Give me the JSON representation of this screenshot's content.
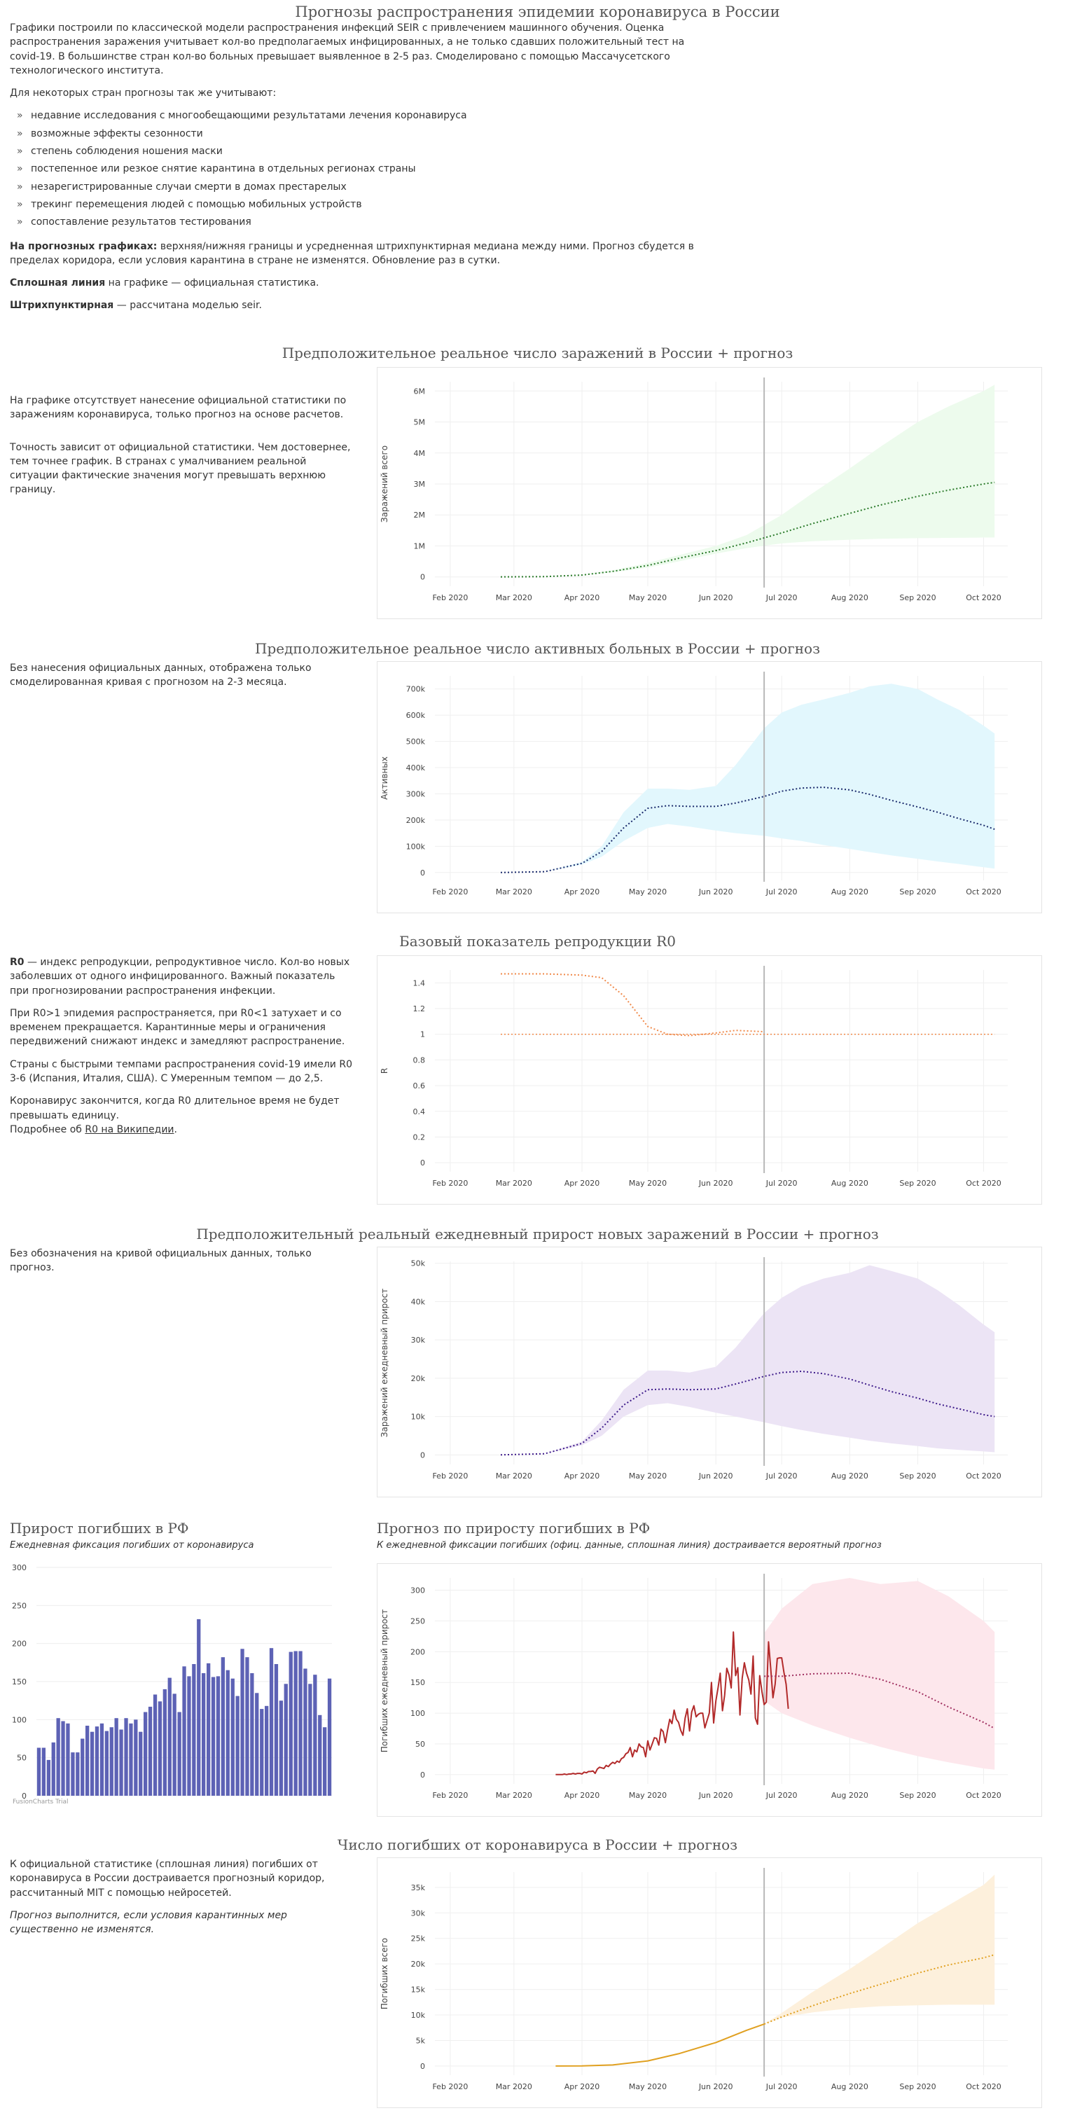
{
  "page": {
    "title": "Прогнозы распространения эпидемии коронавируса в России",
    "intro_p1": "Графики построили по классической модели распространения инфекций SEIR с привлечением машинного обучения. Оценка распространения заражения учитывает кол-во предполагаемых инфицированных, а не только сдавших положительный тест на covid-19. В большинстве стран кол-во больных превышает выявленное в 2-5 раз. Смоделировано с помощью Массачусетского технологического института.",
    "intro_p2": "Для некоторых стран прогнозы так же учитывают:",
    "factors": [
      "недавние исследования с многообещающими результатами лечения коронавируса",
      "возможные эффекты сезонности",
      "степень соблюдения ношения маски",
      "постепенное или резкое снятие карантина в отдельных регионах страны",
      "незарегистрированные случаи смерти в домах престарелых",
      "трекинг перемещения людей с помощью мобильных устройств",
      "сопоставление результатов тестирования"
    ],
    "note_forecast_bold": "На прогнозных графиках:",
    "note_forecast_text": " верхняя/нижняя границы и усредненная штрихпунктирная медиана между ними. Прогноз сбудется в пределах коридора, если условия карантина в стране не изменятся. Обновление раз в сутки.",
    "note_solid_bold": "Сплошная линия",
    "note_solid_text": " на графике — официальная статистика.",
    "note_dashed_bold": "Штрихпунктирная",
    "note_dashed_text": " — рассчитана моделью seir."
  },
  "sections": {
    "infected": {
      "title": "Предположительное реальное число заражений в России + прогноз",
      "text1": "На графике отсутствует нанесение официальной статистики по заражениям коронавируса, только прогноз на основе расчетов.",
      "text2": "Точность зависит от официальной статистики. Чем достовернее, тем точнее график. В странах с умалчиванием реальной ситуации фактические значения могут превышать верхнюю границу."
    },
    "active": {
      "title": "Предположительное реальное число активных больных в России + прогноз",
      "text1": "Без нанесения официальных данных, отображена только смоделированная кривая с прогнозом на 2-3 месяца."
    },
    "r0": {
      "title": "Базовый показатель репродукции R0",
      "p1_bold": "R0",
      "p1_text": " — индекс репродукции, репродуктивное число. Кол-во новых заболевших от одного инфицированного. Важный показатель при прогнозировании распространения инфекции.",
      "p2": "При R0>1 эпидемия распространяется, при R0<1 затухает и со временем прекращается. Карантинные меры и ограничения передвижений снижают индекс и замедляют распространение.",
      "p3": "Страны с быстрыми темпами распространения covid-19 имели R0 3-6 (Испания, Италия, США). С Умеренным темпом — до 2,5.",
      "p4": "Коронавирус закончится, когда R0 длительное время не будет превышать единицу.",
      "p5_prefix": "Подробнее об ",
      "p5_link": "R0 на Википедии",
      "p5_suffix": "."
    },
    "daily": {
      "title": "Предположительный реальный ежедневный прирост новых заражений в России + прогноз",
      "text1": "Без обозначения на кривой официальных данных, только прогноз."
    },
    "deaths_growth": {
      "title": "Прирост погибших в РФ",
      "subtitle": "Ежедневная фиксация погибших от коронавируса",
      "credit": "FusionCharts Trial"
    },
    "deaths_forecast": {
      "title": "Прогноз по приросту погибших в РФ",
      "subtitle": "К ежедневной фиксации погибших (офиц. данные, сплошная линия) достраивается вероятный прогноз"
    },
    "deaths_total": {
      "title": "Число погибших от коронавируса в России + прогноз",
      "text1": "К официальной статистике (сплошная линия) погибших от коронавируса в России достраивается прогнозный коридор, рассчитанный MIT с помощью нейросетей.",
      "text2": "Прогноз выполнится, если условия карантинных мер существенно не изменятся."
    }
  },
  "chart_data": [
    {
      "id": "infected",
      "type": "area",
      "x_ticks": [
        "Feb 2020",
        "Mar 2020",
        "Apr 2020",
        "May 2020",
        "Jun 2020",
        "Jul 2020",
        "Aug 2020",
        "Sep 2020",
        "Oct 2020"
      ],
      "ylabel": "Заражений всего",
      "y_ticks": [
        0,
        1000000,
        2000000,
        3000000,
        4000000,
        5000000,
        6000000
      ],
      "y_tick_labels": [
        "0",
        "1M",
        "2M",
        "3M",
        "4M",
        "5M",
        "6M"
      ],
      "ylim": [
        -300000,
        6300000
      ],
      "grid": true,
      "band_color": "#edfbed",
      "line_color": "#2a7a2a",
      "today": "2020-06-23",
      "series": [
        {
          "x": [
            "2020-02-24",
            "2020-03-15",
            "2020-04-01",
            "2020-04-15",
            "2020-05-01",
            "2020-05-15",
            "2020-06-01",
            "2020-06-15",
            "2020-07-01",
            "2020-07-15",
            "2020-08-01",
            "2020-08-15",
            "2020-09-01",
            "2020-09-15",
            "2020-10-01",
            "2020-10-06"
          ],
          "lower": [
            0,
            10000,
            50000,
            150000,
            300000,
            500000,
            750000,
            930000,
            1080000,
            1150000,
            1200000,
            1230000,
            1250000,
            1260000,
            1270000,
            1270000
          ],
          "median": [
            0,
            10000,
            60000,
            180000,
            370000,
            600000,
            850000,
            1100000,
            1420000,
            1720000,
            2050000,
            2320000,
            2600000,
            2800000,
            3000000,
            3050000
          ],
          "upper": [
            0,
            10000,
            70000,
            210000,
            450000,
            700000,
            1000000,
            1350000,
            2000000,
            2700000,
            3500000,
            4200000,
            5000000,
            5500000,
            6000000,
            6200000
          ]
        }
      ]
    },
    {
      "id": "active",
      "type": "area",
      "x_ticks": [
        "Feb 2020",
        "Mar 2020",
        "Apr 2020",
        "May 2020",
        "Jun 2020",
        "Jul 2020",
        "Aug 2020",
        "Sep 2020",
        "Oct 2020"
      ],
      "ylabel": "Активных",
      "y_ticks": [
        0,
        100000,
        200000,
        300000,
        400000,
        500000,
        600000,
        700000
      ],
      "y_tick_labels": [
        "0",
        "100k",
        "200k",
        "300k",
        "400k",
        "500k",
        "600k",
        "700k"
      ],
      "ylim": [
        -30000,
        750000
      ],
      "grid": true,
      "band_color": "#e2f7fd",
      "line_color": "#1a2a6c",
      "today": "2020-06-23",
      "series": [
        {
          "x": [
            "2020-02-24",
            "2020-03-15",
            "2020-04-01",
            "2020-04-10",
            "2020-04-20",
            "2020-05-01",
            "2020-05-10",
            "2020-05-20",
            "2020-06-01",
            "2020-06-10",
            "2020-06-23",
            "2020-07-01",
            "2020-07-10",
            "2020-07-20",
            "2020-08-01",
            "2020-08-10",
            "2020-08-20",
            "2020-09-01",
            "2020-09-10",
            "2020-09-20",
            "2020-10-01",
            "2020-10-06"
          ],
          "lower": [
            0,
            3000,
            30000,
            60000,
            120000,
            170000,
            185000,
            175000,
            160000,
            150000,
            140000,
            130000,
            120000,
            105000,
            90000,
            78000,
            65000,
            52000,
            42000,
            32000,
            20000,
            15000
          ],
          "median": [
            0,
            3000,
            35000,
            80000,
            170000,
            245000,
            255000,
            252000,
            252000,
            265000,
            290000,
            310000,
            322000,
            325000,
            315000,
            298000,
            275000,
            250000,
            230000,
            205000,
            180000,
            165000
          ],
          "upper": [
            0,
            3000,
            40000,
            100000,
            230000,
            320000,
            320000,
            315000,
            330000,
            410000,
            550000,
            610000,
            640000,
            660000,
            685000,
            710000,
            720000,
            700000,
            660000,
            620000,
            560000,
            530000
          ]
        }
      ]
    },
    {
      "id": "r0",
      "type": "line",
      "x_ticks": [
        "Feb 2020",
        "Mar 2020",
        "Apr 2020",
        "May 2020",
        "Jun 2020",
        "Jul 2020",
        "Aug 2020",
        "Sep 2020",
        "Oct 2020"
      ],
      "ylabel": "R",
      "y_ticks": [
        0,
        0.2,
        0.4,
        0.6,
        0.8,
        1,
        1.2,
        1.4
      ],
      "y_tick_labels": [
        "0",
        "0.2",
        "0.4",
        "0.6",
        "0.8",
        "1",
        "1.2",
        "1.4"
      ],
      "ylim": [
        -0.07,
        1.5
      ],
      "grid": true,
      "line_color": "#f08a4b",
      "today": "2020-06-23",
      "reference": {
        "y": 1,
        "from": "2020-02-24",
        "to": "2020-10-06"
      },
      "series": [
        {
          "x": [
            "2020-02-24",
            "2020-03-15",
            "2020-04-01",
            "2020-04-10",
            "2020-04-20",
            "2020-05-01",
            "2020-05-10",
            "2020-05-20",
            "2020-06-01",
            "2020-06-10",
            "2020-06-23"
          ],
          "y": [
            1.47,
            1.47,
            1.46,
            1.44,
            1.3,
            1.06,
            1.0,
            0.99,
            1.01,
            1.03,
            1.02
          ]
        }
      ]
    },
    {
      "id": "daily",
      "type": "area",
      "x_ticks": [
        "Feb 2020",
        "Mar 2020",
        "Apr 2020",
        "May 2020",
        "Jun 2020",
        "Jul 2020",
        "Aug 2020",
        "Sep 2020",
        "Oct 2020"
      ],
      "ylabel": "Заражений ежедневный прирост",
      "y_ticks": [
        0,
        10000,
        20000,
        30000,
        40000,
        50000
      ],
      "y_tick_labels": [
        "0",
        "10k",
        "20k",
        "30k",
        "40k",
        "50k"
      ],
      "ylim": [
        -2500,
        50500
      ],
      "grid": true,
      "band_color": "#ece4f5",
      "line_color": "#3d1a8a",
      "today": "2020-06-23",
      "series": [
        {
          "x": [
            "2020-02-24",
            "2020-03-15",
            "2020-04-01",
            "2020-04-10",
            "2020-04-20",
            "2020-05-01",
            "2020-05-10",
            "2020-05-20",
            "2020-06-01",
            "2020-06-10",
            "2020-06-23",
            "2020-07-01",
            "2020-07-10",
            "2020-07-20",
            "2020-08-01",
            "2020-08-10",
            "2020-08-20",
            "2020-09-01",
            "2020-09-10",
            "2020-09-20",
            "2020-10-01",
            "2020-10-06"
          ],
          "lower": [
            0,
            300,
            2500,
            5000,
            10000,
            13000,
            13500,
            12500,
            11000,
            10000,
            8500,
            7500,
            6500,
            5500,
            4500,
            3700,
            3000,
            2300,
            1700,
            1300,
            900,
            700
          ],
          "median": [
            0,
            300,
            3000,
            7000,
            13000,
            17000,
            17200,
            17000,
            17200,
            18500,
            20500,
            21500,
            21800,
            21200,
            19800,
            18200,
            16500,
            14800,
            13300,
            12000,
            10500,
            10000
          ],
          "upper": [
            0,
            300,
            3500,
            9000,
            17000,
            22000,
            22000,
            21500,
            23000,
            28000,
            37000,
            41000,
            44000,
            46000,
            47500,
            49500,
            48000,
            46000,
            43000,
            39000,
            34000,
            32000
          ]
        }
      ]
    },
    {
      "id": "deaths_bar",
      "type": "bar",
      "y_ticks": [
        0,
        50,
        100,
        150,
        200,
        250,
        300
      ],
      "y_tick_labels": [
        "0",
        "50",
        "100",
        "150",
        "200",
        "250",
        "300"
      ],
      "ylim": [
        0,
        300
      ],
      "grid": true,
      "bar_color": "#5d62b5",
      "values": [
        63,
        63,
        47,
        70,
        102,
        98,
        95,
        57,
        57,
        75,
        92,
        84,
        91,
        95,
        85,
        90,
        102,
        87,
        102,
        95,
        100,
        84,
        110,
        117,
        133,
        124,
        140,
        155,
        134,
        110,
        170,
        157,
        173,
        232,
        161,
        174,
        156,
        157,
        182,
        165,
        154,
        131,
        193,
        182,
        161,
        135,
        114,
        118,
        194,
        173,
        125,
        147,
        189,
        190,
        190,
        167,
        147,
        159,
        106,
        90,
        154
      ]
    },
    {
      "id": "deaths_forecast",
      "type": "area",
      "x_ticks": [
        "Feb 2020",
        "Mar 2020",
        "Apr 2020",
        "May 2020",
        "Jun 2020",
        "Jul 2020",
        "Aug 2020",
        "Sep 2020",
        "Oct 2020"
      ],
      "ylabel": "Погибших ежедневный прирост",
      "y_ticks": [
        0,
        50,
        100,
        150,
        200,
        250,
        300
      ],
      "y_tick_labels": [
        "0",
        "50",
        "100",
        "150",
        "200",
        "250",
        "300"
      ],
      "ylim": [
        -15,
        320
      ],
      "grid": true,
      "band_color": "#fde7ec",
      "line_color": "#b22a2a",
      "forecast_color": "#a03060",
      "today": "2020-06-23",
      "actual_start": "2020-03-20",
      "actual": [
        0,
        0,
        0,
        0,
        1,
        0,
        1,
        1,
        2,
        1,
        2,
        2,
        1,
        4,
        3,
        5,
        5,
        6,
        2,
        9,
        12,
        11,
        10,
        15,
        13,
        17,
        20,
        18,
        22,
        20,
        26,
        28,
        34,
        36,
        44,
        29,
        40,
        37,
        50,
        45,
        44,
        29,
        55,
        40,
        50,
        60,
        59,
        48,
        74,
        70,
        52,
        72,
        90,
        83,
        105,
        90,
        85,
        72,
        64,
        92,
        107,
        71,
        102,
        112,
        94,
        98,
        100,
        100,
        76,
        88,
        100,
        150,
        84,
        120,
        141,
        165,
        104,
        129,
        173,
        162,
        141,
        232,
        161,
        174,
        97,
        157,
        182,
        165,
        154,
        131,
        193,
        92,
        82,
        161,
        135,
        114,
        118,
        216,
        173,
        125,
        147,
        189,
        190,
        190,
        167,
        147,
        107
      ],
      "forecast": {
        "x": [
          "2020-06-23",
          "2020-07-01",
          "2020-07-15",
          "2020-08-01",
          "2020-08-15",
          "2020-09-01",
          "2020-09-15",
          "2020-10-01",
          "2020-10-06"
        ],
        "lower": [
          120,
          100,
          80,
          60,
          45,
          30,
          20,
          10,
          8
        ],
        "median": [
          160,
          160,
          164,
          165,
          155,
          135,
          110,
          85,
          75
        ],
        "upper": [
          230,
          270,
          310,
          320,
          310,
          315,
          290,
          250,
          232
        ]
      }
    },
    {
      "id": "deaths_total",
      "type": "area",
      "x_ticks": [
        "Feb 2020",
        "Mar 2020",
        "Apr 2020",
        "May 2020",
        "Jun 2020",
        "Jul 2020",
        "Aug 2020",
        "Sep 2020",
        "Oct 2020"
      ],
      "ylabel": "Погибших всего",
      "y_ticks": [
        0,
        5000,
        10000,
        15000,
        20000,
        25000,
        30000,
        35000
      ],
      "y_tick_labels": [
        "0",
        "5k",
        "10k",
        "15k",
        "20k",
        "25k",
        "30k",
        "35k"
      ],
      "ylim": [
        -1800,
        38000
      ],
      "grid": true,
      "band_color": "#fdf0dc",
      "line_color": "#e0a020",
      "today": "2020-06-23",
      "actual": {
        "x": [
          "2020-03-20",
          "2020-04-01",
          "2020-04-15",
          "2020-05-01",
          "2020-05-15",
          "2020-06-01",
          "2020-06-15",
          "2020-06-23"
        ],
        "y": [
          0,
          20,
          200,
          1000,
          2400,
          4600,
          7000,
          8200
        ]
      },
      "forecast": {
        "x": [
          "2020-06-23",
          "2020-07-01",
          "2020-07-15",
          "2020-08-01",
          "2020-08-15",
          "2020-09-01",
          "2020-09-15",
          "2020-10-01",
          "2020-10-06"
        ],
        "lower": [
          8200,
          9500,
          10500,
          11300,
          11700,
          11900,
          12000,
          12000,
          12000
        ],
        "median": [
          8200,
          9600,
          11800,
          14200,
          16000,
          18200,
          19800,
          21200,
          21800
        ],
        "upper": [
          8200,
          10400,
          14500,
          19000,
          23000,
          28000,
          31500,
          35500,
          37500
        ]
      }
    }
  ]
}
